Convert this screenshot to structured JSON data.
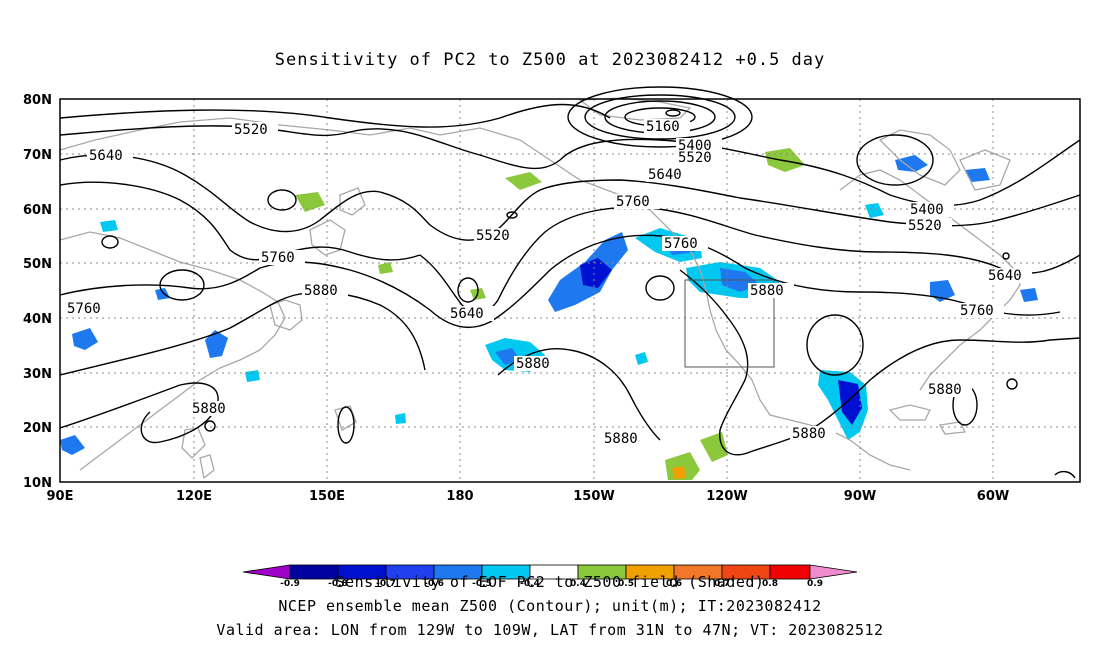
{
  "title": "Sensitivity of PC2 to Z500 at 2023082412 +0.5 day",
  "map": {
    "lat_labels": [
      "80N",
      "70N",
      "60N",
      "50N",
      "40N",
      "30N",
      "20N",
      "10N"
    ],
    "lon_labels": [
      "90E",
      "120E",
      "150E",
      "180",
      "150W",
      "120W",
      "90W",
      "60W"
    ],
    "contour_labels": [
      "5160",
      "5400",
      "5520",
      "5640",
      "5760",
      "5880"
    ],
    "valid_area_box": {
      "lon_range": [
        "129W",
        "109W"
      ],
      "lat_range": [
        "31N",
        "47N"
      ]
    },
    "shading_legend_colors": {
      "negative": [
        "#a000c8",
        "#0000a0",
        "#0010d0",
        "#2040f0",
        "#1e78f0",
        "#00c8f0"
      ],
      "neutral": "#ffffff",
      "positive": [
        "#8cc83c",
        "#f0a000",
        "#f07828",
        "#f04614",
        "#f00000",
        "#f08ccd"
      ]
    }
  },
  "colorbar": {
    "tick_labels": [
      "-0.9",
      "-0.8",
      "-0.7",
      "-0.6",
      "-0.5",
      "-0.4",
      "0.4",
      "0.5",
      "0.6",
      "0.7",
      "0.8",
      "0.9"
    ]
  },
  "captions": {
    "line1": "Sensitivity of EOF PC2 to Z500 field (Shaded)",
    "line2": "NCEP ensemble mean Z500 (Contour); unit(m); IT:2023082412",
    "line3": "Valid area: LON from 129W to 109W, LAT from 31N to 47N; VT: 2023082512"
  }
}
